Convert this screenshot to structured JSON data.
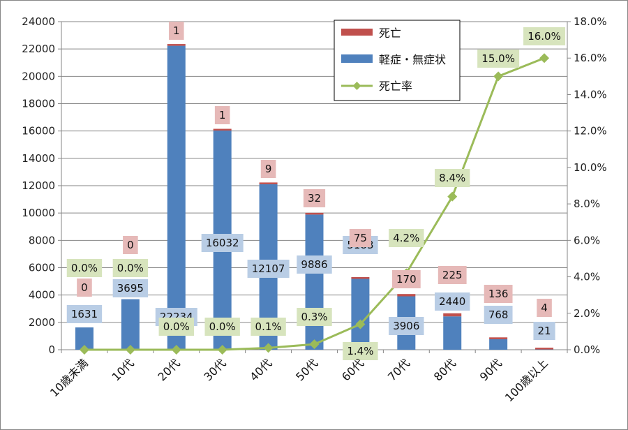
{
  "chart_data": {
    "type": "bar",
    "stacked": true,
    "categories": [
      "10歳未満",
      "10代",
      "20代",
      "30代",
      "40代",
      "50代",
      "60代",
      "70代",
      "80代",
      "90代",
      "100歳以上"
    ],
    "series": [
      {
        "name": "軽症・無症状",
        "type": "bar",
        "axis": "left",
        "color": "#4f81bd",
        "values": [
          1631,
          3695,
          22234,
          16032,
          12107,
          9886,
          5183,
          3906,
          2440,
          768,
          21
        ]
      },
      {
        "name": "死亡",
        "type": "bar",
        "axis": "left",
        "color": "#c0504d",
        "values": [
          0,
          0,
          1,
          1,
          9,
          32,
          75,
          170,
          225,
          136,
          4
        ]
      },
      {
        "name": "死亡率",
        "type": "line",
        "axis": "right",
        "color": "#9bbb59",
        "values": [
          0.0,
          0.0,
          0.0,
          0.0,
          0.1,
          0.3,
          1.4,
          4.2,
          8.4,
          15.0,
          16.0
        ],
        "labels": [
          "0.0%",
          "0.0%",
          "0.0%",
          "0.0%",
          "0.1%",
          "0.3%",
          "1.4%",
          "4.2%",
          "8.4%",
          "15.0%",
          "16.0%"
        ]
      }
    ],
    "y_left": {
      "min": 0,
      "max": 24000,
      "step": 2000,
      "ticks": [
        "0",
        "2000",
        "4000",
        "6000",
        "8000",
        "10000",
        "12000",
        "14000",
        "16000",
        "18000",
        "20000",
        "22000",
        "24000"
      ]
    },
    "y_right": {
      "min": 0,
      "max": 18,
      "step": 2,
      "ticks": [
        "0.0%",
        "2.0%",
        "4.0%",
        "6.0%",
        "8.0%",
        "10.0%",
        "12.0%",
        "14.0%",
        "16.0%",
        "18.0%"
      ]
    },
    "legend": {
      "placement": "top-right",
      "entries": [
        "死亡",
        "軽症・無症状",
        "死亡率"
      ]
    },
    "grid": true,
    "colors": {
      "grid": "#868686",
      "axis": "#868686",
      "bar_label_bg": "#b9cde5",
      "death_label_bg": "#e6b9b8",
      "rate_label_bg": "#d7e4bd"
    }
  }
}
